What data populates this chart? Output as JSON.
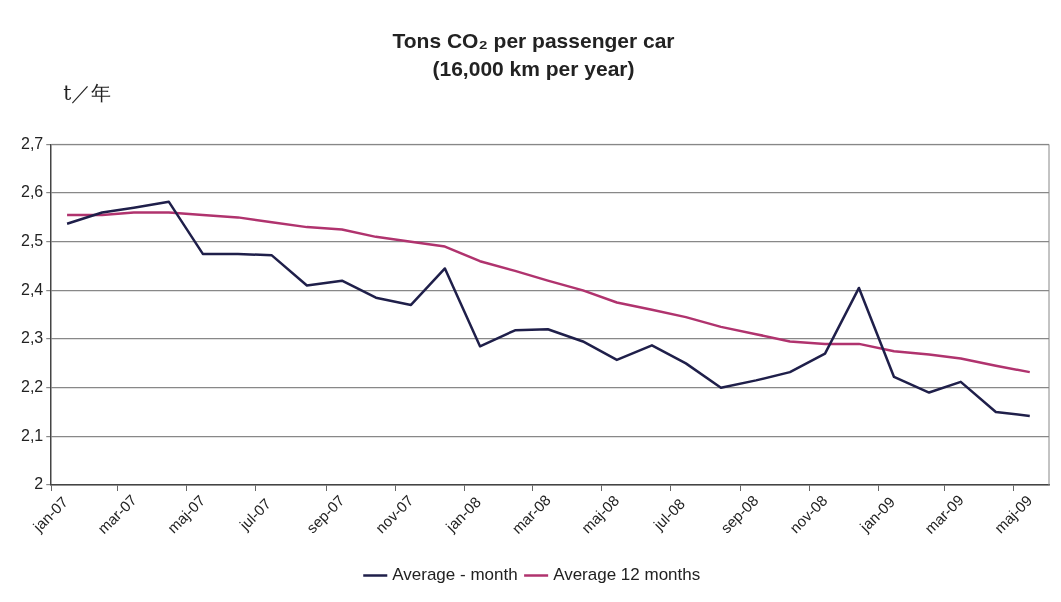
{
  "chart_data": {
    "type": "line",
    "title": "Tons CO₂ per passenger car",
    "subtitle": "(16,000 km per year)",
    "ylabel": "t／年",
    "x": [
      "2007-01-15",
      "2007-02-15",
      "2007-03-15",
      "2007-04-15",
      "2007-05-15",
      "2007-06-15",
      "2007-07-15",
      "2007-08-15",
      "2007-09-15",
      "2007-10-15",
      "2007-11-15",
      "2007-12-15",
      "2008-01-15",
      "2008-02-15",
      "2008-03-15",
      "2008-04-15",
      "2008-05-15",
      "2008-06-15",
      "2008-07-15",
      "2008-08-15",
      "2008-09-15",
      "2008-10-15",
      "2008-11-15",
      "2008-12-15",
      "2009-01-15",
      "2009-02-15",
      "2009-03-15",
      "2009-04-15",
      "2009-05-15"
    ],
    "series": [
      {
        "name": "Average - month",
        "color": "#1f1f4a",
        "values": [
          2.537,
          2.56,
          2.57,
          2.582,
          2.475,
          2.475,
          2.472,
          2.41,
          2.42,
          2.385,
          2.37,
          2.445,
          2.285,
          2.318,
          2.32,
          2.295,
          2.257,
          2.287,
          2.25,
          2.2,
          2.215,
          2.232,
          2.27,
          2.405,
          2.222,
          2.19,
          2.212,
          2.15,
          2.142
        ]
      },
      {
        "name": "Average 12 months",
        "color": "#b0336e",
        "values": [
          2.555,
          2.555,
          2.56,
          2.56,
          2.555,
          2.55,
          2.54,
          2.53,
          2.525,
          2.51,
          2.5,
          2.49,
          2.46,
          2.44,
          2.42,
          2.4,
          2.375,
          2.36,
          2.345,
          2.325,
          2.31,
          2.295,
          2.29,
          2.29,
          2.275,
          2.268,
          2.26,
          2.245,
          2.232
        ]
      }
    ],
    "xlim": [
      "2007-01",
      "2009-06"
    ],
    "xticks": [
      {
        "value": "2007-01",
        "label": "jan-07"
      },
      {
        "value": "2007-03",
        "label": "mar-07"
      },
      {
        "value": "2007-05",
        "label": "maj-07"
      },
      {
        "value": "2007-07",
        "label": "jul-07"
      },
      {
        "value": "2007-09",
        "label": "sep-07"
      },
      {
        "value": "2007-11",
        "label": "nov-07"
      },
      {
        "value": "2008-01",
        "label": "jan-08"
      },
      {
        "value": "2008-03",
        "label": "mar-08"
      },
      {
        "value": "2008-05",
        "label": "maj-08"
      },
      {
        "value": "2008-07",
        "label": "jul-08"
      },
      {
        "value": "2008-09",
        "label": "sep-08"
      },
      {
        "value": "2008-11",
        "label": "nov-08"
      },
      {
        "value": "2009-01",
        "label": "jan-09"
      },
      {
        "value": "2009-03",
        "label": "mar-09"
      },
      {
        "value": "2009-05",
        "label": "maj-09"
      }
    ],
    "ylim": [
      2,
      2.7
    ],
    "yticks": [
      2,
      {
        "value": 2.1,
        "label": "2,1"
      },
      {
        "value": 2.2,
        "label": "2,2"
      },
      {
        "value": 2.3,
        "label": "2,3"
      },
      {
        "value": 2.4,
        "label": "2,4"
      },
      {
        "value": 2.5,
        "label": "2,5"
      },
      {
        "value": 2.6,
        "label": "2,6"
      },
      {
        "value": 2.7,
        "label": "2,7"
      }
    ],
    "grid": "y",
    "legend": "bottom",
    "marker": "none",
    "line_style": "solid"
  }
}
